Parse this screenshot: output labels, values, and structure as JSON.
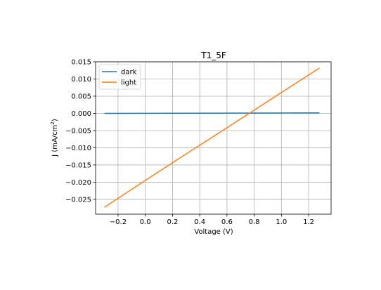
{
  "chart_data": {
    "type": "line",
    "title": "T1_5F",
    "xlabel": "Voltage (V)",
    "ylabel_main": "J (mA/cm",
    "ylabel_sup": "2",
    "ylabel_tail": ")",
    "xlim": [
      -0.365,
      1.365
    ],
    "ylim": [
      -0.0293,
      0.015
    ],
    "xticks": [
      -0.2,
      0.0,
      0.2,
      0.4,
      0.6,
      0.8,
      1.0,
      1.2
    ],
    "xtick_labels": [
      "−0.2",
      "0.0",
      "0.2",
      "0.4",
      "0.6",
      "0.8",
      "1.0",
      "1.2"
    ],
    "yticks": [
      -0.025,
      -0.02,
      -0.015,
      -0.01,
      -0.005,
      0.0,
      0.005,
      0.01,
      0.015
    ],
    "ytick_labels": [
      "−0.025",
      "−0.020",
      "−0.015",
      "−0.010",
      "−0.005",
      "0.000",
      "0.005",
      "0.010",
      "0.015"
    ],
    "grid": true,
    "legend_position": "top-left",
    "series": [
      {
        "name": "dark",
        "color": "#1f77b4",
        "x": [
          -0.3,
          0.0,
          0.3,
          0.6,
          0.9,
          1.28
        ],
        "y": [
          0.0,
          2e-05,
          4e-05,
          6e-05,
          0.0001,
          0.00014
        ]
      },
      {
        "name": "light",
        "color": "#ff7f0e",
        "x": [
          -0.3,
          0.0,
          0.3,
          0.6,
          0.9,
          1.28
        ],
        "y": [
          -0.0273,
          -0.0195,
          -0.0118,
          -0.0042,
          0.0035,
          0.0132
        ]
      }
    ]
  }
}
